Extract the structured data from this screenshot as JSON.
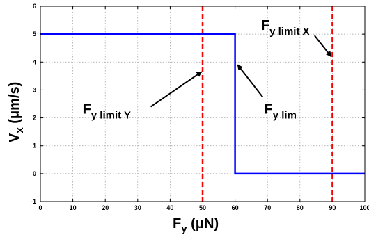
{
  "chart_data": {
    "type": "line",
    "title": "",
    "xlabel": {
      "main": "F",
      "sub": "y",
      "unit": " (μN)"
    },
    "ylabel": {
      "main": "V",
      "sub": "x",
      "unit": " (μm/s)"
    },
    "xlim": [
      0,
      100
    ],
    "ylim": [
      -1,
      6
    ],
    "xticks": [
      0,
      10,
      20,
      30,
      40,
      50,
      60,
      70,
      80,
      90,
      100
    ],
    "yticks": [
      -1,
      0,
      1,
      2,
      3,
      4,
      5,
      6
    ],
    "grid": true,
    "series": [
      {
        "color": "#0000ff",
        "style": "solid",
        "x": [
          0,
          60,
          60,
          100
        ],
        "y": [
          5,
          5,
          0,
          0
        ]
      }
    ],
    "vertical_lines": [
      {
        "x": 50,
        "color": "#ff0000",
        "style": "dashed"
      },
      {
        "x": 90,
        "color": "#ff0000",
        "style": "dashed"
      }
    ],
    "annotations": [
      {
        "main": "F",
        "sub": "y limit Y",
        "text_xy": [
          13,
          2.15
        ],
        "arrow_from": [
          34,
          2.4
        ],
        "arrow_to": [
          49.7,
          3.65
        ]
      },
      {
        "main": "F",
        "sub": "y lim",
        "text_xy": [
          69,
          2.15
        ],
        "arrow_from": [
          68.5,
          2.75
        ],
        "arrow_to": [
          60.8,
          3.9
        ]
      },
      {
        "main": "F",
        "sub": "y limit X",
        "text_xy": [
          68,
          5.15
        ],
        "arrow_from": [
          84.5,
          4.95
        ],
        "arrow_to": [
          89.6,
          4.2
        ]
      }
    ]
  }
}
